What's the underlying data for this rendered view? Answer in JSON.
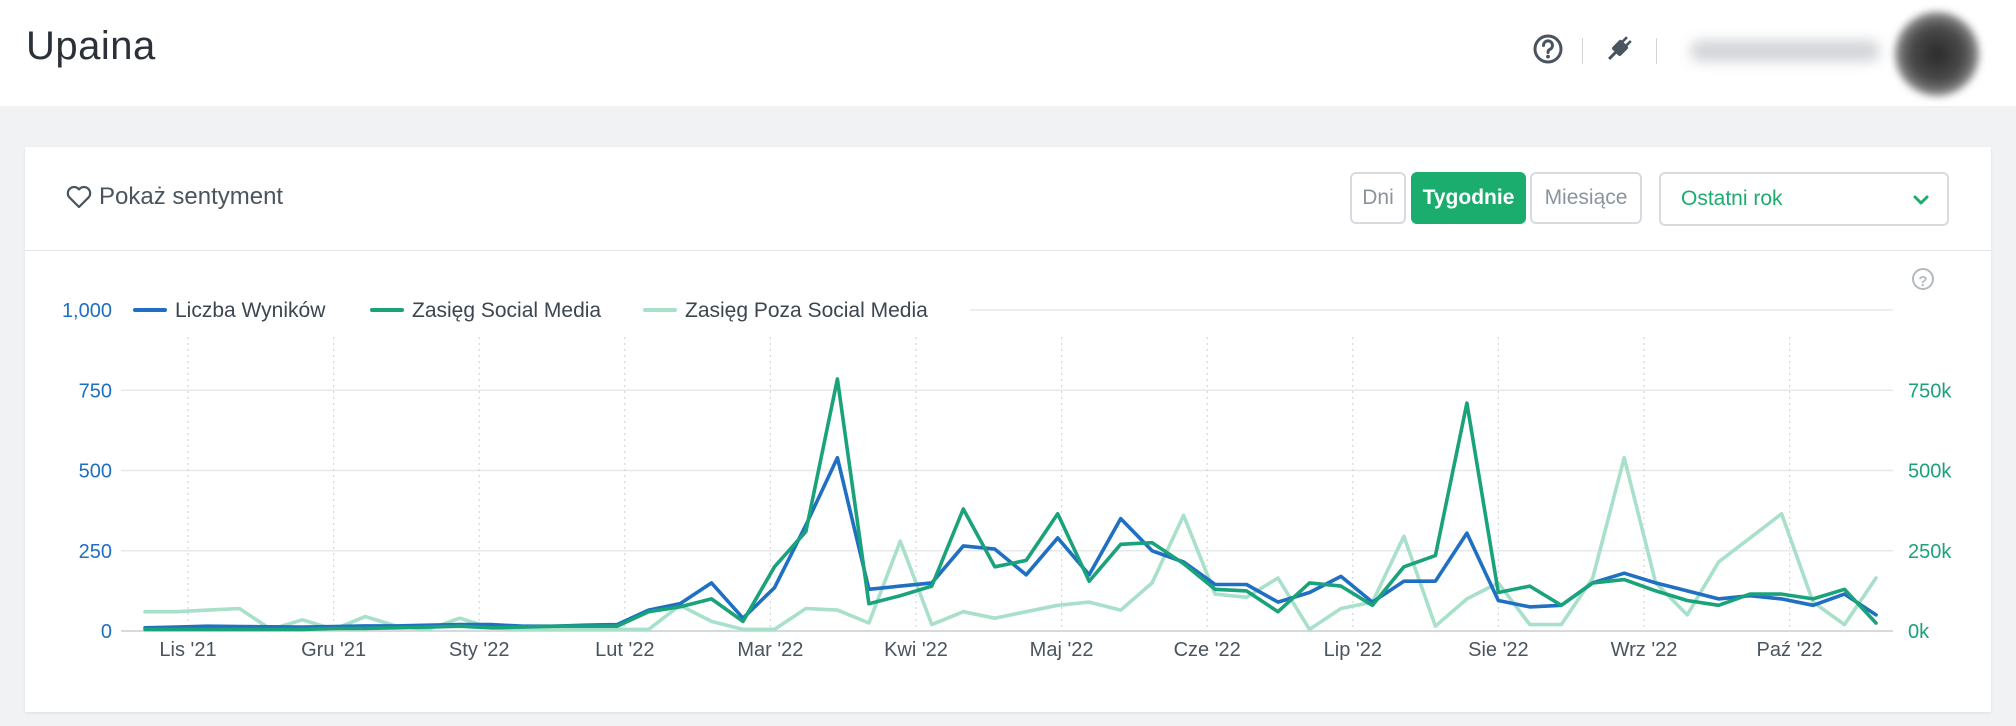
{
  "app": {
    "title": "Upaina"
  },
  "header_icons": [
    "help-circle-icon",
    "plug-icon"
  ],
  "toolbar": {
    "sentiment_label": "Pokaż sentyment",
    "granularity": {
      "days": "Dni",
      "weeks": "Tygodnie",
      "months": "Miesiące",
      "active": "weeks"
    },
    "period": {
      "value": "Ostatni rok"
    }
  },
  "colors": {
    "accent": "#1aad6e",
    "series_results": "#1f6fc2",
    "series_social": "#1aa37a",
    "series_nonsocial": "#a8e0c9",
    "left_axis": "#1f6fc2",
    "right_axis": "#1aa37a"
  },
  "chart_data": {
    "type": "line",
    "x_ticks": [
      "Lis '21",
      "Gru '21",
      "Sty '22",
      "Lut '22",
      "Mar '22",
      "Kwi '22",
      "Maj '22",
      "Cze '22",
      "Lip '22",
      "Sie '22",
      "Wrz '22",
      "Paź '22"
    ],
    "y_left": {
      "ticks": [
        "0",
        "250",
        "500",
        "750",
        "1,000"
      ],
      "ylim": [
        0,
        1000
      ]
    },
    "y_right": {
      "ticks": [
        "0k",
        "250k",
        "500k",
        "750k"
      ],
      "ylim": [
        0,
        1000000
      ]
    },
    "legend_position": "top-left",
    "grid": "horizontal solid, vertical dotted at month ticks",
    "series": [
      {
        "name": "Liczba Wyników",
        "axis": "left",
        "values": [
          10,
          12,
          15,
          14,
          13,
          12,
          14,
          16,
          16,
          18,
          20,
          20,
          15,
          15,
          18,
          20,
          65,
          85,
          150,
          40,
          135,
          330,
          540,
          130,
          140,
          150,
          265,
          255,
          175,
          290,
          175,
          350,
          250,
          215,
          145,
          145,
          90,
          120,
          170,
          90,
          155,
          155,
          305,
          95,
          75,
          80,
          150,
          180,
          150,
          125,
          100,
          110,
          100,
          80,
          115,
          50
        ]
      },
      {
        "name": "Zasięg Social Media",
        "axis": "right",
        "values": [
          5000,
          5000,
          5000,
          5000,
          5000,
          5000,
          8000,
          8000,
          10000,
          12000,
          15000,
          10000,
          12000,
          15000,
          15000,
          15000,
          60000,
          75000,
          100000,
          30000,
          200000,
          310000,
          785000,
          85000,
          110000,
          140000,
          380000,
          200000,
          220000,
          365000,
          155000,
          270000,
          275000,
          210000,
          130000,
          125000,
          60000,
          150000,
          140000,
          80000,
          200000,
          235000,
          710000,
          120000,
          140000,
          80000,
          150000,
          160000,
          125000,
          95000,
          80000,
          115000,
          115000,
          100000,
          130000,
          25000
        ]
      },
      {
        "name": "Zasięg Poza Social Media",
        "axis": "right",
        "values": [
          60000,
          60000,
          65000,
          70000,
          5000,
          35000,
          5000,
          45000,
          15000,
          5000,
          40000,
          10000,
          5000,
          5000,
          5000,
          5000,
          5000,
          80000,
          30000,
          5000,
          5000,
          70000,
          65000,
          25000,
          280000,
          20000,
          60000,
          40000,
          60000,
          80000,
          90000,
          65000,
          150000,
          360000,
          115000,
          105000,
          165000,
          5000,
          70000,
          90000,
          295000,
          15000,
          100000,
          150000,
          20000,
          20000,
          165000,
          540000,
          150000,
          50000,
          215000,
          290000,
          365000,
          90000,
          20000,
          165000
        ]
      }
    ]
  }
}
